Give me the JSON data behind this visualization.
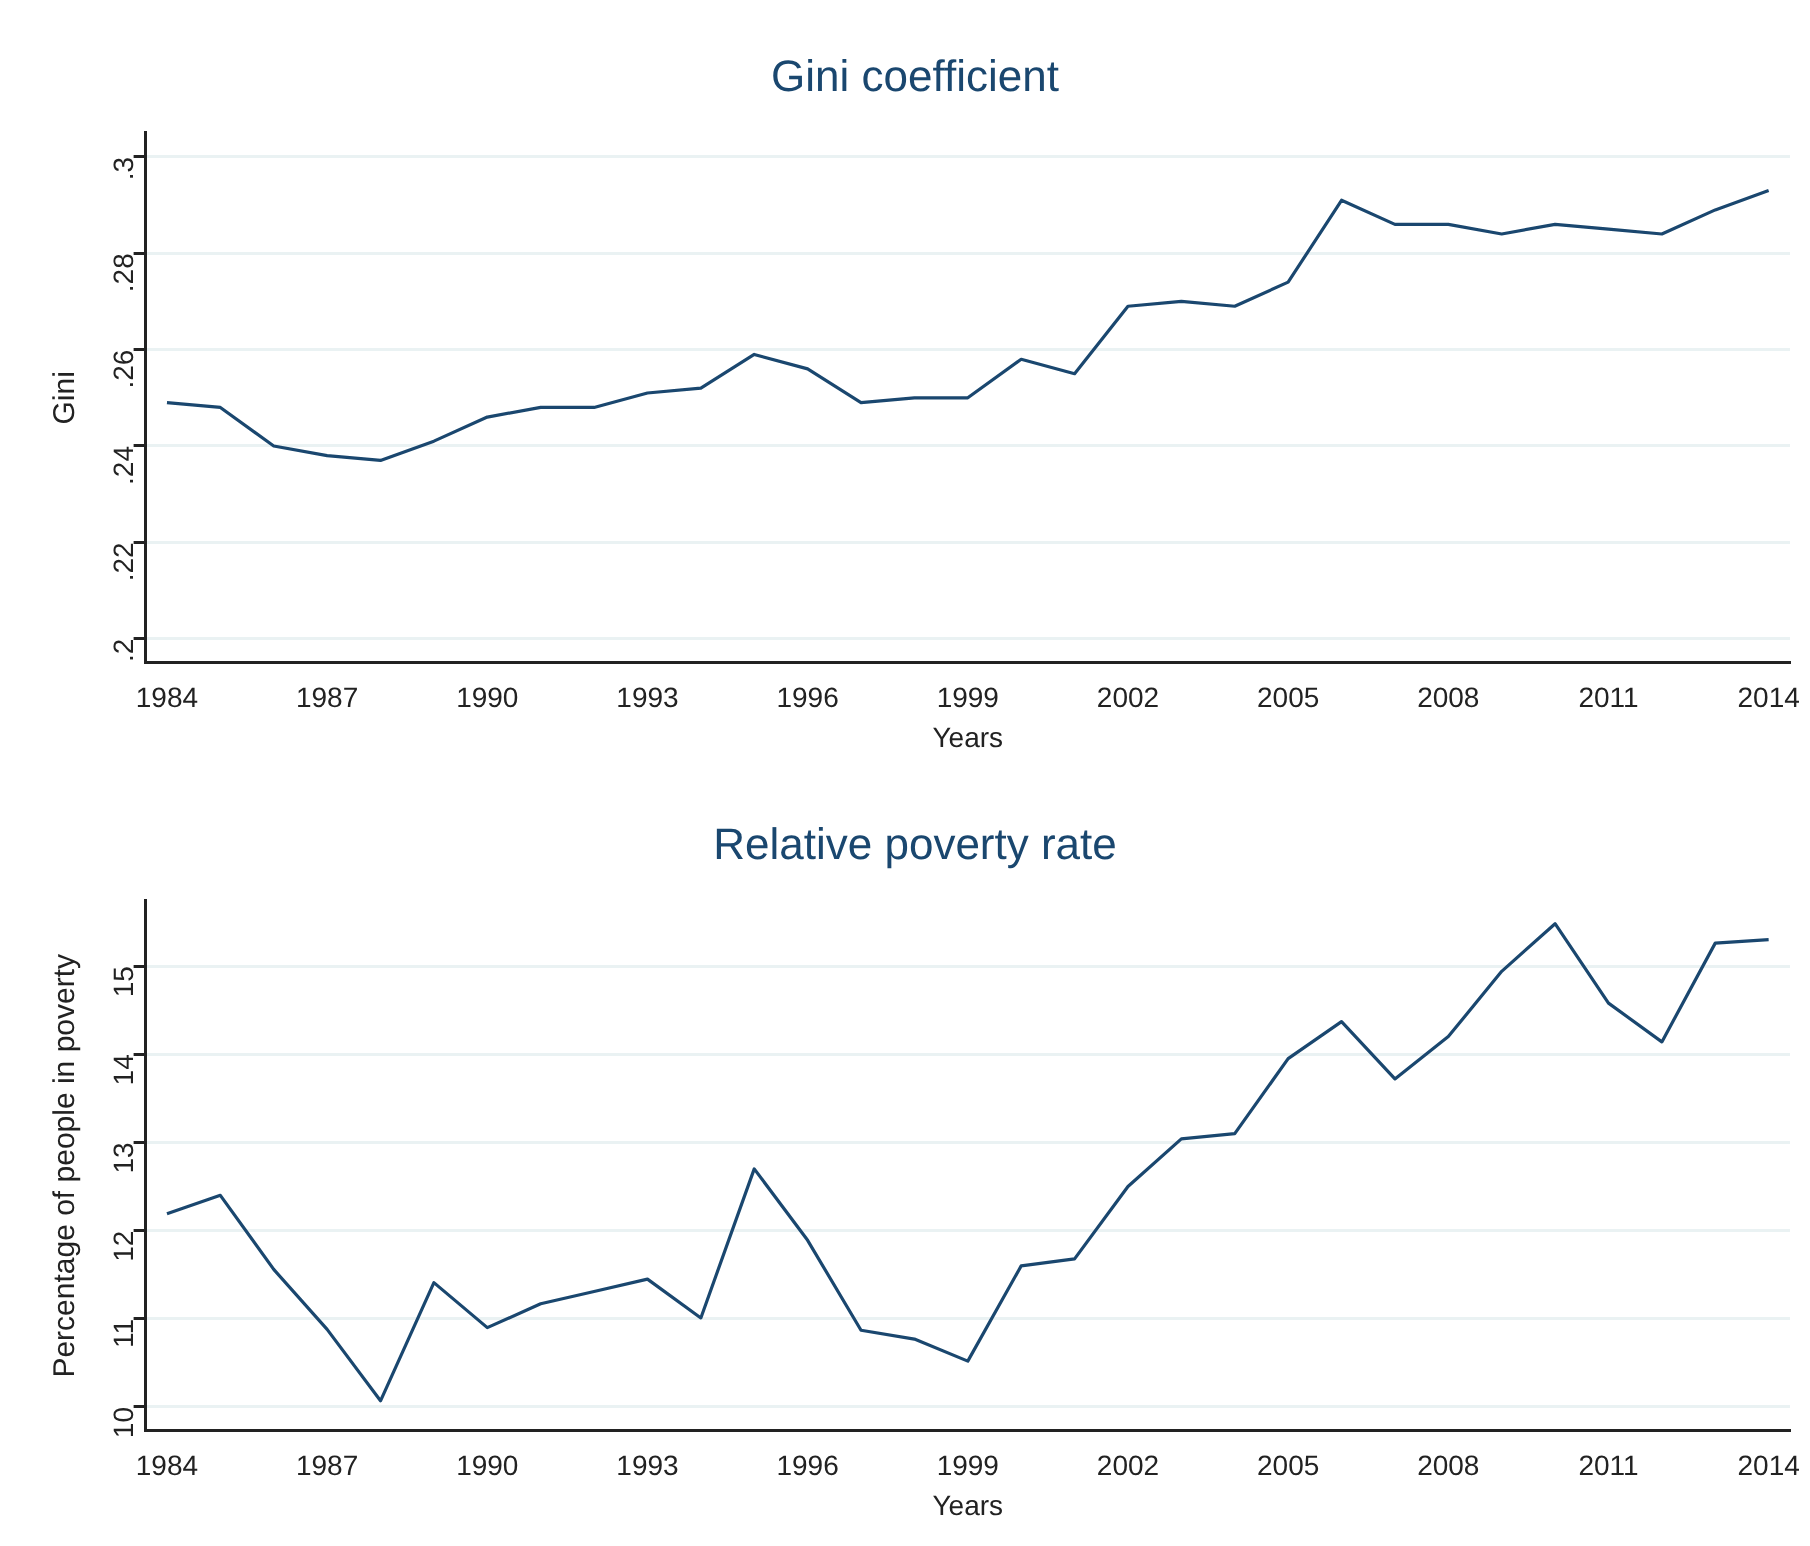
{
  "chart_data": [
    {
      "type": "line",
      "title": "Gini coefficient",
      "xlabel": "Years",
      "ylabel": "Gini",
      "x": [
        1984,
        1985,
        1986,
        1987,
        1988,
        1989,
        1990,
        1991,
        1992,
        1993,
        1994,
        1995,
        1996,
        1997,
        1998,
        1999,
        2000,
        2001,
        2002,
        2003,
        2004,
        2005,
        2006,
        2007,
        2008,
        2009,
        2010,
        2011,
        2012,
        2013,
        2014
      ],
      "series": [
        {
          "color": "#1a476f",
          "values": [
            0.249,
            0.248,
            0.24,
            0.238,
            0.237,
            0.241,
            0.246,
            0.248,
            0.248,
            0.251,
            0.252,
            0.259,
            0.256,
            0.249,
            0.25,
            0.25,
            0.258,
            0.255,
            0.269,
            0.27,
            0.269,
            0.274,
            0.291,
            0.286,
            0.286,
            0.284,
            0.286,
            0.285,
            0.284,
            0.289,
            0.293
          ]
        }
      ],
      "xlim": [
        1983.6,
        2014.4
      ],
      "xticks": [
        1984,
        1987,
        1990,
        1993,
        1996,
        1999,
        2002,
        2005,
        2008,
        2011,
        2014
      ],
      "ylim": [
        0.195,
        0.305
      ],
      "yticks": [
        {
          "value": 0.2,
          "label": ".2"
        },
        {
          "value": 0.22,
          "label": ".22"
        },
        {
          "value": 0.24,
          "label": ".24"
        },
        {
          "value": 0.26,
          "label": ".26"
        },
        {
          "value": 0.28,
          "label": ".28"
        },
        {
          "value": 0.3,
          "label": ".3"
        }
      ],
      "grid": "y",
      "legend": false,
      "marker": "none",
      "line_style": "solid"
    },
    {
      "type": "line",
      "title": "Relative poverty rate",
      "xlabel": "Years",
      "ylabel": "Percentage of people in poverty",
      "x": [
        1984,
        1985,
        1986,
        1987,
        1988,
        1989,
        1990,
        1991,
        1992,
        1993,
        1994,
        1995,
        1996,
        1997,
        1998,
        1999,
        2000,
        2001,
        2002,
        2003,
        2004,
        2005,
        2006,
        2007,
        2008,
        2009,
        2010,
        2011,
        2012,
        2013,
        2014
      ],
      "series": [
        {
          "color": "#1a476f",
          "values": [
            12.19,
            12.4,
            11.56,
            10.88,
            10.07,
            11.41,
            10.9,
            11.17,
            11.31,
            11.45,
            11.01,
            12.7,
            11.89,
            10.87,
            10.77,
            10.52,
            11.6,
            11.68,
            12.5,
            13.04,
            13.1,
            13.95,
            14.37,
            13.72,
            14.2,
            14.94,
            15.48,
            14.58,
            14.14,
            15.26,
            15.3
          ]
        }
      ],
      "xlim": [
        1983.6,
        2014.4
      ],
      "xticks": [
        1984,
        1987,
        1990,
        1993,
        1996,
        1999,
        2002,
        2005,
        2008,
        2011,
        2014
      ],
      "ylim": [
        9.73,
        15.74
      ],
      "yticks": [
        10,
        11,
        12,
        13,
        14,
        15
      ],
      "grid": "y",
      "legend": false,
      "marker": "none",
      "line_style": "solid"
    }
  ]
}
